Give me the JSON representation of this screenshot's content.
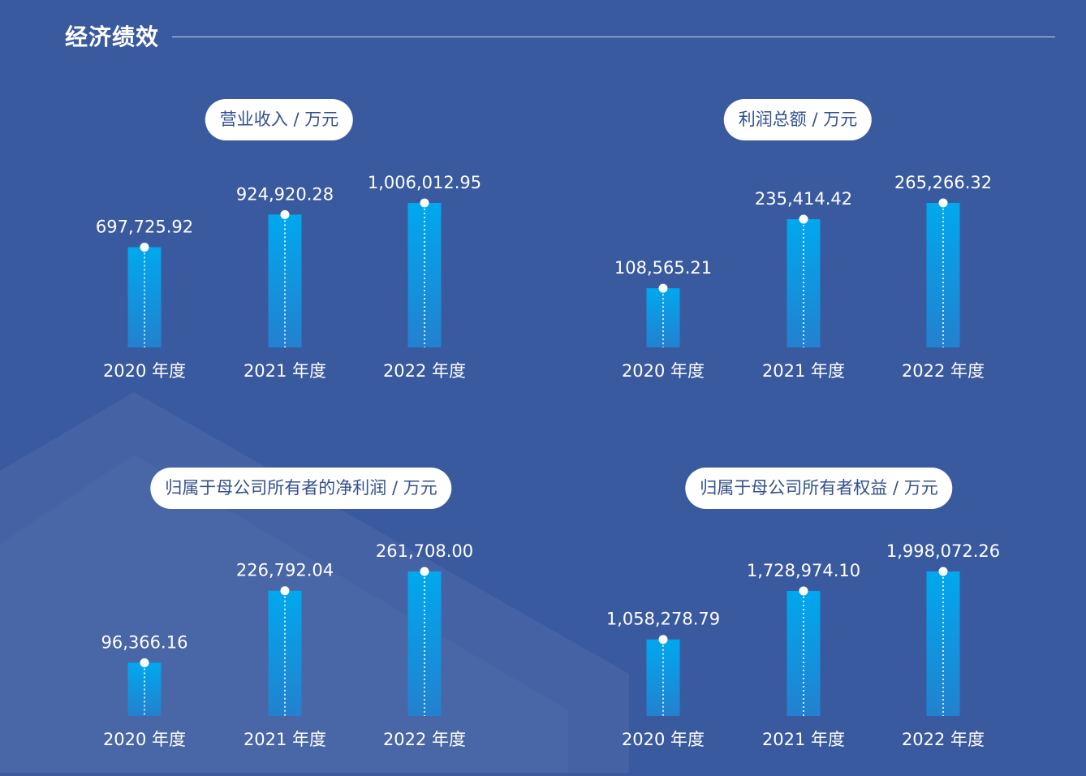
{
  "section_title": "经济绩效",
  "colors": {
    "background": "#3a5aa0",
    "bar_top": "#00a8ee",
    "bar_bottom": "#2381cf",
    "pill": "#ffffff",
    "pill_text": "#33508f"
  },
  "chart_data": [
    {
      "type": "bar",
      "title": "营业收入 / 万元",
      "categories": [
        "2020 年度",
        "2021 年度",
        "2022 年度"
      ],
      "values": [
        697725.92,
        924920.28,
        1006012.95
      ],
      "labels": [
        "697,725.92",
        "924,920.28",
        "1,006,012.95"
      ]
    },
    {
      "type": "bar",
      "title": "利润总额 / 万元",
      "categories": [
        "2020 年度",
        "2021 年度",
        "2022 年度"
      ],
      "values": [
        108565.21,
        235414.42,
        265266.32
      ],
      "labels": [
        "108,565.21",
        "235,414.42",
        "265,266.32"
      ]
    },
    {
      "type": "bar",
      "title": "归属于母公司所有者的净利润 / 万元",
      "categories": [
        "2020 年度",
        "2021 年度",
        "2022 年度"
      ],
      "values": [
        96366.16,
        226792.04,
        261708.0
      ],
      "labels": [
        "96,366.16",
        "226,792.04",
        "261,708.00"
      ]
    },
    {
      "type": "bar",
      "title": "归属于母公司所有者权益 / 万元",
      "categories": [
        "2020 年度",
        "2021 年度",
        "2022 年度"
      ],
      "values": [
        1058278.79,
        1728974.1,
        1998072.26
      ],
      "labels": [
        "1,058,278.79",
        "1,728,974.10",
        "1,998,072.26"
      ]
    }
  ]
}
